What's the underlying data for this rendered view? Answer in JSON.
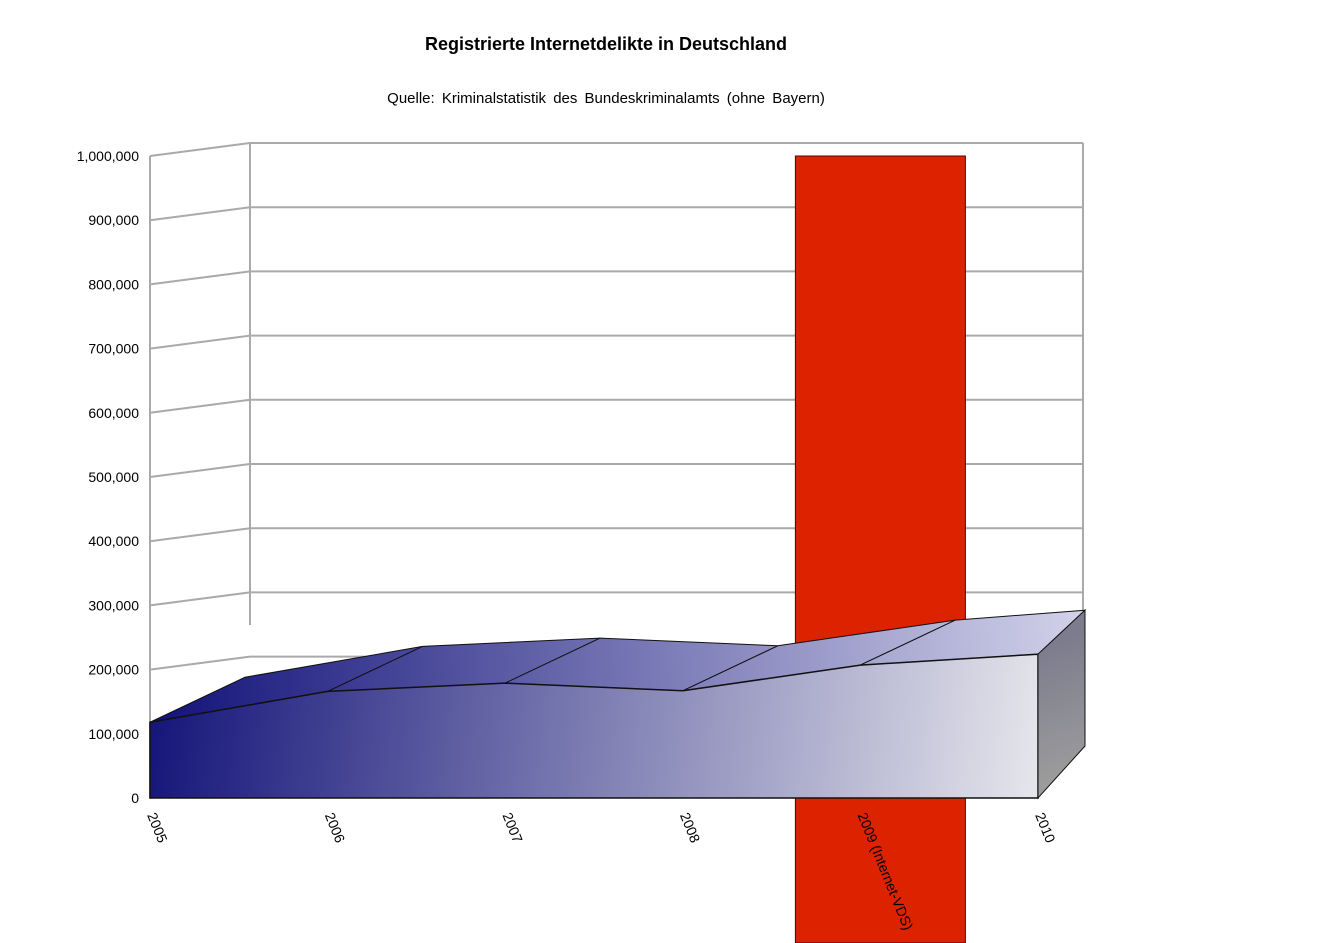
{
  "chart_data": {
    "type": "area",
    "title": "Registrierte Internetdelikte in Deutschland",
    "subtitle": "Quelle:  Kriminalstatistik  des  Bundeskriminalamts  (ohne  Bayern)",
    "categories": [
      "2005",
      "2006",
      "2007",
      "2008",
      "2009 (Internet-VDS)",
      "2010"
    ],
    "series": [
      {
        "values": [
          118000,
          166000,
          179000,
          167000,
          207000,
          224000
        ]
      }
    ],
    "highlight": {
      "category": "2009 (Internet-VDS)",
      "color": "#dd2200"
    },
    "ylim": [
      0,
      1000000
    ],
    "yticks": [
      0,
      100000,
      200000,
      300000,
      400000,
      500000,
      600000,
      700000,
      800000,
      900000,
      1000000
    ],
    "ytick_labels": [
      "0",
      "100,000",
      "200,000",
      "300,000",
      "400,000",
      "500,000",
      "600,000",
      "700,000",
      "800,000",
      "900,000",
      "1,000,000"
    ],
    "grid": true,
    "colors": {
      "area_dark": "#15157a",
      "area_light": "#dcdce6",
      "grid": "#aaaaaa"
    }
  }
}
